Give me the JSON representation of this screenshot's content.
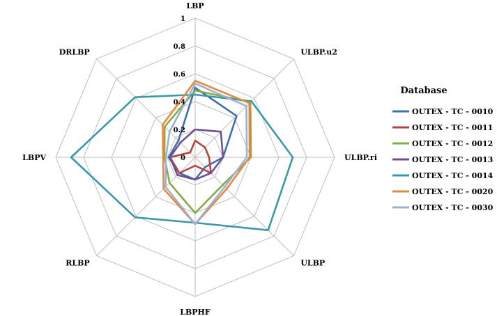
{
  "chart_data": {
    "type": "radar",
    "axes": [
      "LBP",
      "ULBP.u2",
      "ULBP.ri",
      "ULBP",
      "LBPHF",
      "RLBP",
      "LBPV",
      "DRLBP"
    ],
    "radial_ticks": [
      "0",
      "0.2",
      "0.4",
      "0.6",
      "0.8",
      "1"
    ],
    "rlim": [
      0,
      1
    ],
    "grid": true,
    "legend": {
      "title": "Database",
      "position": "right"
    },
    "series": [
      {
        "name": "OUTEX - TC - 0010",
        "color": "#3f6faa",
        "values": [
          0.5,
          0.42,
          0.2,
          0.1,
          0.16,
          0.16,
          0.19,
          0.17
        ]
      },
      {
        "name": "OUTEX - TC - 0011",
        "color": "#b0443f",
        "values": [
          0.12,
          0.1,
          0.1,
          0.16,
          0.06,
          0.16,
          0.18,
          0.05
        ]
      },
      {
        "name": "OUTEX - TC - 0012",
        "color": "#86ab45",
        "values": [
          0.48,
          0.56,
          0.4,
          0.28,
          0.4,
          0.26,
          0.22,
          0.31
        ]
      },
      {
        "name": "OUTEX - TC - 0013",
        "color": "#6f4f94",
        "values": [
          0.2,
          0.26,
          0.2,
          0.16,
          0.16,
          0.18,
          0.18,
          0.15
        ]
      },
      {
        "name": "OUTEX - TC - 0014",
        "color": "#3a98a8",
        "values": [
          0.45,
          0.57,
          0.7,
          0.74,
          0.47,
          0.61,
          0.89,
          0.61
        ]
      },
      {
        "name": "OUTEX - TC - 0020",
        "color": "#e48a3b",
        "values": [
          0.55,
          0.55,
          0.39,
          0.32,
          0.48,
          0.32,
          0.23,
          0.33
        ]
      },
      {
        "name": "OUTEX - TC - 0030",
        "color": "#9fb0d3",
        "values": [
          0.53,
          0.52,
          0.37,
          0.3,
          0.48,
          0.3,
          0.21,
          0.26
        ]
      }
    ]
  }
}
